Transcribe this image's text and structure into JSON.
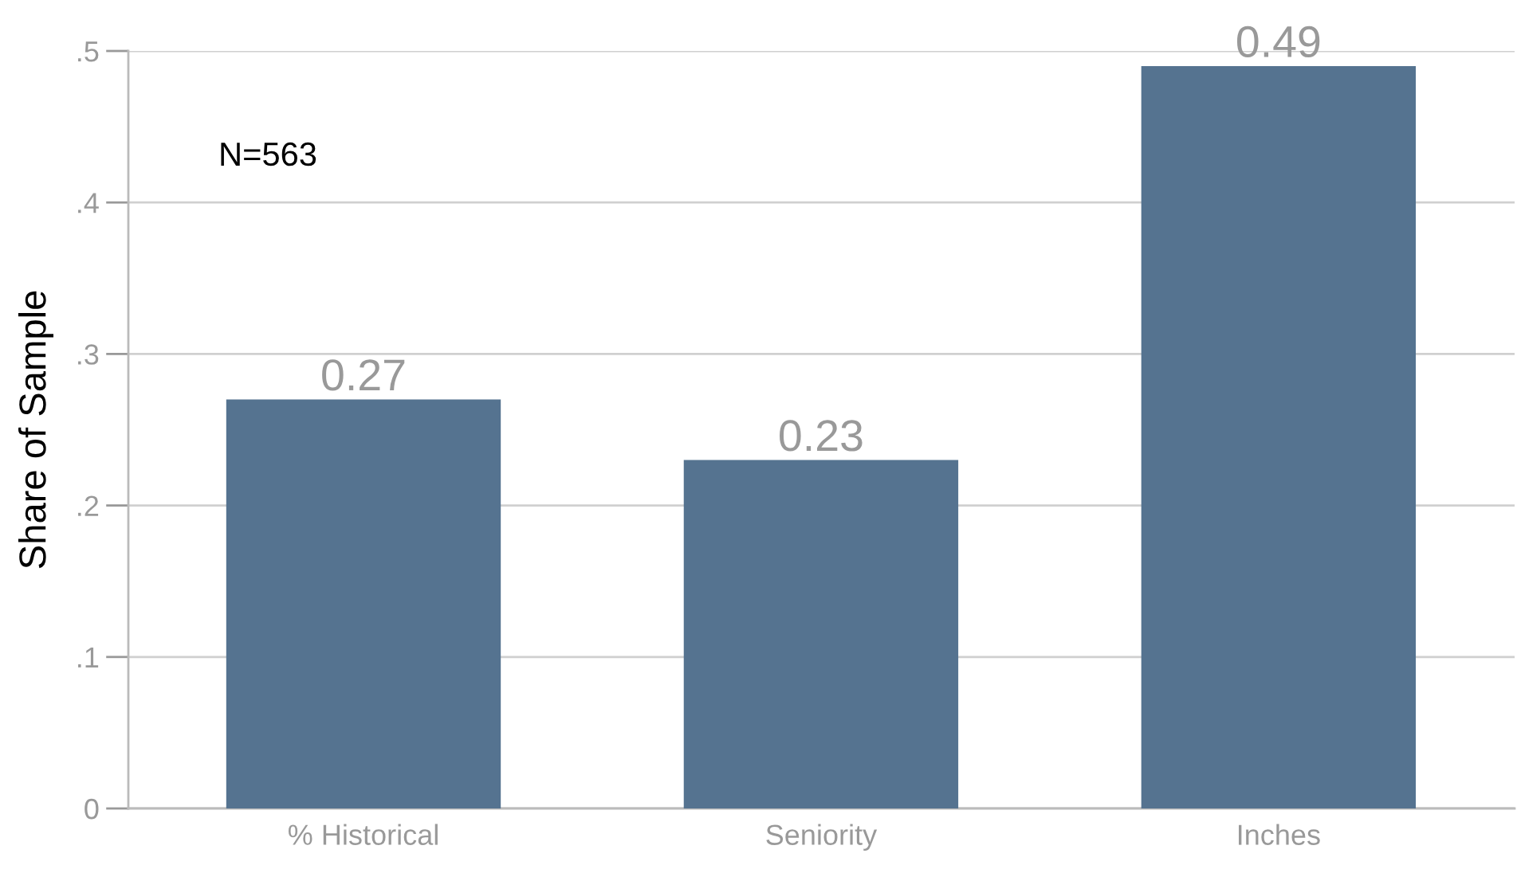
{
  "chart_data": {
    "type": "bar",
    "ylabel": "Share of Sample",
    "categories": [
      "% Historical",
      "Seniority",
      "Inches"
    ],
    "values": [
      0.27,
      0.23,
      0.49
    ],
    "color": "#557390",
    "data_labels": true,
    "ylim": [
      0,
      0.5
    ],
    "yticks": [
      {
        "value": 0,
        "label": "0"
      },
      {
        "value": 0.1,
        "label": ".1"
      },
      {
        "value": 0.2,
        "label": ".2"
      },
      {
        "value": 0.3,
        "label": ".3"
      },
      {
        "value": 0.4,
        "label": ".4"
      },
      {
        "value": 0.5,
        "label": ".5"
      }
    ],
    "grid": "y",
    "annotations": [
      "N=563"
    ]
  }
}
